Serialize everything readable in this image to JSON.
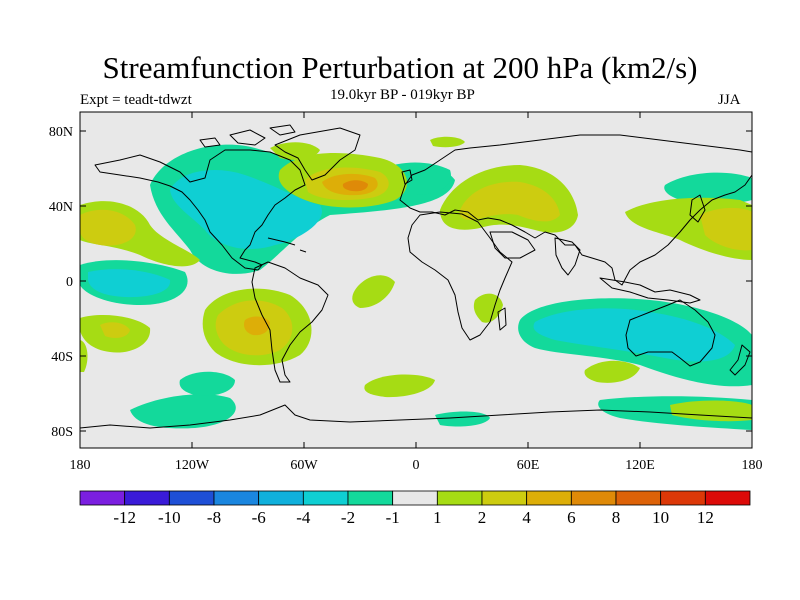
{
  "title": "Streamfunction Perturbation at 200 hPa (km2/s)",
  "experiment": "Expt = teadt-tdwzt",
  "period": "19.0kyr BP - 019kyr BP",
  "season": "JJA",
  "map": {
    "lat_ticks": [
      "80N",
      "40N",
      "0",
      "40S",
      "80S"
    ],
    "lon_ticks": [
      "180",
      "120W",
      "60W",
      "0",
      "60E",
      "120E",
      "180"
    ],
    "background_color": "#e8e8e8"
  },
  "colorbar": {
    "labels": [
      "-12",
      "-10",
      "-8",
      "-6",
      "-4",
      "-2",
      "-1",
      "1",
      "2",
      "4",
      "6",
      "8",
      "10",
      "12"
    ],
    "colors": [
      "#7b1fe0",
      "#3a1bd8",
      "#1e4fd6",
      "#1a86df",
      "#10b0dc",
      "#0fcfd3",
      "#13d99b",
      "#e8e8e8",
      "#a6dc14",
      "#cdcc10",
      "#ddae08",
      "#df8a08",
      "#dd6208",
      "#dc3808",
      "#dc0a08"
    ]
  },
  "colors": {
    "pos1": "#a6dc14",
    "pos2": "#cdcc10",
    "pos4": "#ddae08",
    "pos6": "#df8a08",
    "neg1": "#13d99b",
    "neg2": "#0fcfd3"
  }
}
